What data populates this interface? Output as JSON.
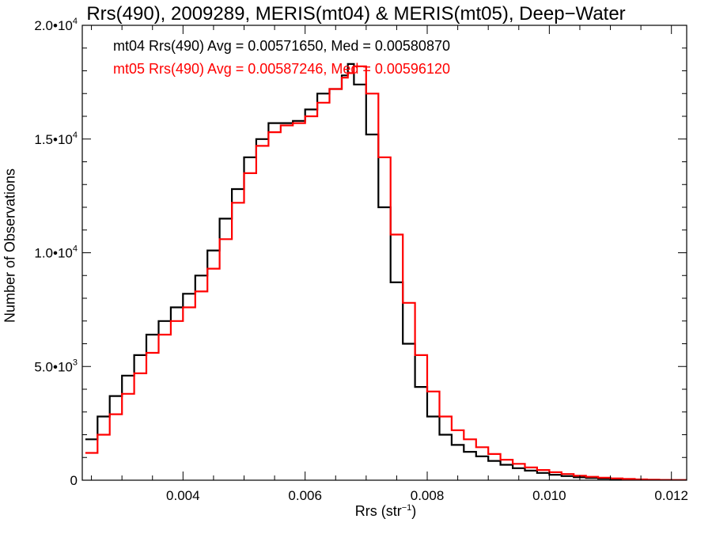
{
  "chart_data": {
    "type": "line",
    "title": "Rrs(490), 2009289, MERIS(mt04) & MERIS(mt05), Deep−Water",
    "xlabel_base": "Rrs (str",
    "xlabel_sup": "−1",
    "xlabel_close": ")",
    "ylabel": "Number of Observations",
    "xlim": [
      0.00235,
      0.01225
    ],
    "ylim": [
      0,
      20000
    ],
    "x_ticks": [
      {
        "value": 0.004,
        "label": "0.004"
      },
      {
        "value": 0.006,
        "label": "0.006"
      },
      {
        "value": 0.008,
        "label": "0.008"
      },
      {
        "value": 0.01,
        "label": "0.010"
      },
      {
        "value": 0.012,
        "label": "0.012"
      }
    ],
    "y_ticks": [
      {
        "value": 0,
        "base": "0",
        "sup": ""
      },
      {
        "value": 5000,
        "base": "5.0•10",
        "sup": "3"
      },
      {
        "value": 10000,
        "base": "1.0•10",
        "sup": "4"
      },
      {
        "value": 15000,
        "base": "1.5•10",
        "sup": "4"
      },
      {
        "value": 20000,
        "base": "2.0•10",
        "sup": "4"
      }
    ],
    "x": [
      0.0024,
      0.0026,
      0.0028,
      0.003,
      0.0032,
      0.0034,
      0.0036,
      0.0038,
      0.004,
      0.0042,
      0.0044,
      0.0046,
      0.0048,
      0.005,
      0.0052,
      0.0054,
      0.0056,
      0.0058,
      0.006,
      0.0062,
      0.0064,
      0.0066,
      0.0067,
      0.0068,
      0.007,
      0.0072,
      0.0074,
      0.0076,
      0.0078,
      0.008,
      0.0082,
      0.0084,
      0.0086,
      0.0088,
      0.009,
      0.0092,
      0.0094,
      0.0096,
      0.0098,
      0.01,
      0.0102,
      0.0104,
      0.0106,
      0.0108,
      0.011,
      0.0112,
      0.0114,
      0.0116,
      0.0118,
      0.012,
      0.0122
    ],
    "series": [
      {
        "name": "mt04",
        "color": "#000000",
        "values": [
          1800,
          2800,
          3700,
          4600,
          5500,
          6400,
          7000,
          7600,
          8200,
          9000,
          10100,
          11500,
          12800,
          14200,
          15000,
          15700,
          15700,
          15800,
          16300,
          17000,
          17200,
          17800,
          18300,
          17400,
          15200,
          12000,
          8700,
          6000,
          4100,
          2800,
          2000,
          1550,
          1250,
          1050,
          850,
          680,
          530,
          420,
          320,
          240,
          180,
          130,
          100,
          70,
          50,
          35,
          25,
          15,
          10,
          5,
          3
        ]
      },
      {
        "name": "mt05",
        "color": "#ff0000",
        "values": [
          1200,
          2000,
          2900,
          3800,
          4700,
          5600,
          6400,
          7000,
          7600,
          8300,
          9300,
          10600,
          12200,
          13500,
          14700,
          15300,
          15600,
          15700,
          16000,
          16600,
          17200,
          17700,
          17900,
          18200,
          17000,
          14200,
          10800,
          7800,
          5500,
          3900,
          2800,
          2200,
          1800,
          1450,
          1150,
          900,
          720,
          560,
          450,
          350,
          270,
          200,
          150,
          110,
          80,
          55,
          35,
          20,
          12,
          6,
          3
        ]
      }
    ],
    "legend": [
      {
        "text": "mt04 Rrs(490) Avg = 0.00571650, Med = 0.00580870",
        "color": "#000000"
      },
      {
        "text": "mt05 Rrs(490) Avg = 0.00587246, Med = 0.00596120",
        "color": "#ff0000"
      }
    ],
    "legend_placement": "top-left",
    "grid": false
  }
}
